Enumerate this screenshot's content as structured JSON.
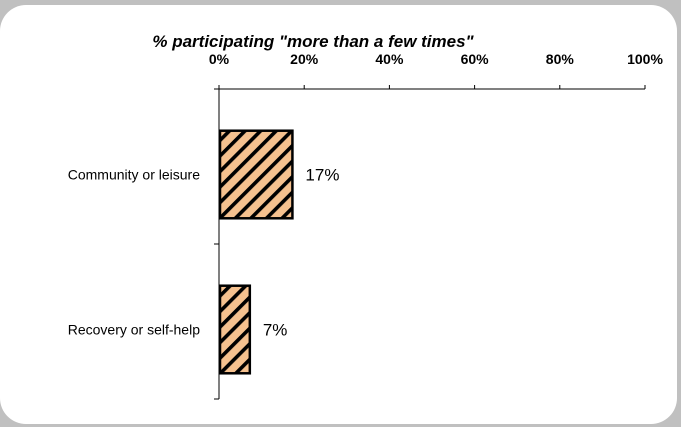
{
  "chart_data": {
    "type": "bar",
    "orientation": "horizontal",
    "title": "% participating \"more than a few times\"",
    "x_ticks": [
      "0%",
      "20%",
      "40%",
      "60%",
      "80%",
      "100%"
    ],
    "xlim": [
      0,
      100
    ],
    "x_axis_position": "top",
    "categories": [
      "Community or leisure",
      "Recovery or self-help"
    ],
    "values": [
      17,
      7
    ],
    "value_labels": [
      "17%",
      "7%"
    ],
    "grid": false,
    "legend": "none",
    "bar_fill": "diagonal hatch",
    "colors": {
      "bar": "#f5c18f",
      "hatch": "#000000",
      "outline": "#000000",
      "background": "#ffffff",
      "frame": "#c0c0c0"
    }
  }
}
